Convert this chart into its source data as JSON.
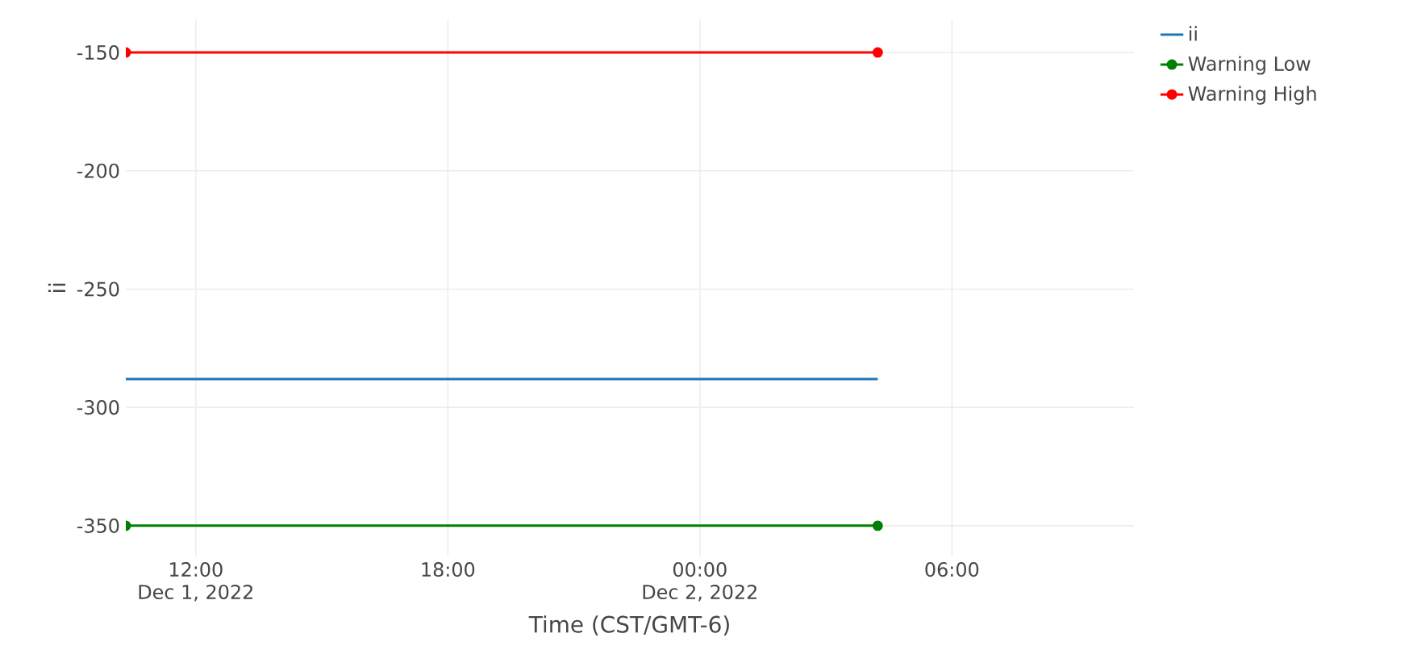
{
  "chart_data": {
    "type": "line",
    "xlabel": "Time (CST/GMT-6)",
    "ylabel": "ii",
    "xlim": [
      "2022-12-01T10:20",
      "2022-12-02T10:20"
    ],
    "xticks": [
      {
        "value": "2022-12-01T12:00",
        "label": "12:00\nDec 1, 2022"
      },
      {
        "value": "2022-12-01T18:00",
        "label": "18:00"
      },
      {
        "value": "2022-12-02T00:00",
        "label": "00:00\nDec 2, 2022"
      },
      {
        "value": "2022-12-02T06:00",
        "label": "06:00"
      }
    ],
    "ylim": [
      -363,
      -136
    ],
    "yticks": [
      -350,
      -300,
      -250,
      -200,
      -150
    ],
    "grid": true,
    "legend": "top right",
    "line_style": "solid",
    "series": [
      {
        "name": "ii",
        "color": "#1f77b4",
        "marker": "none",
        "x": [
          "2022-12-01T10:20",
          "2022-12-02T04:14"
        ],
        "values": [
          -288,
          -288
        ]
      },
      {
        "name": "Warning Low",
        "color": "#008000",
        "marker": "circle",
        "x": [
          "2022-12-01T10:20",
          "2022-12-02T04:14"
        ],
        "values": [
          -350,
          -350
        ]
      },
      {
        "name": "Warning High",
        "color": "#ff0000",
        "marker": "circle",
        "x": [
          "2022-12-01T10:20",
          "2022-12-02T04:14"
        ],
        "values": [
          -150,
          -150
        ]
      }
    ]
  }
}
